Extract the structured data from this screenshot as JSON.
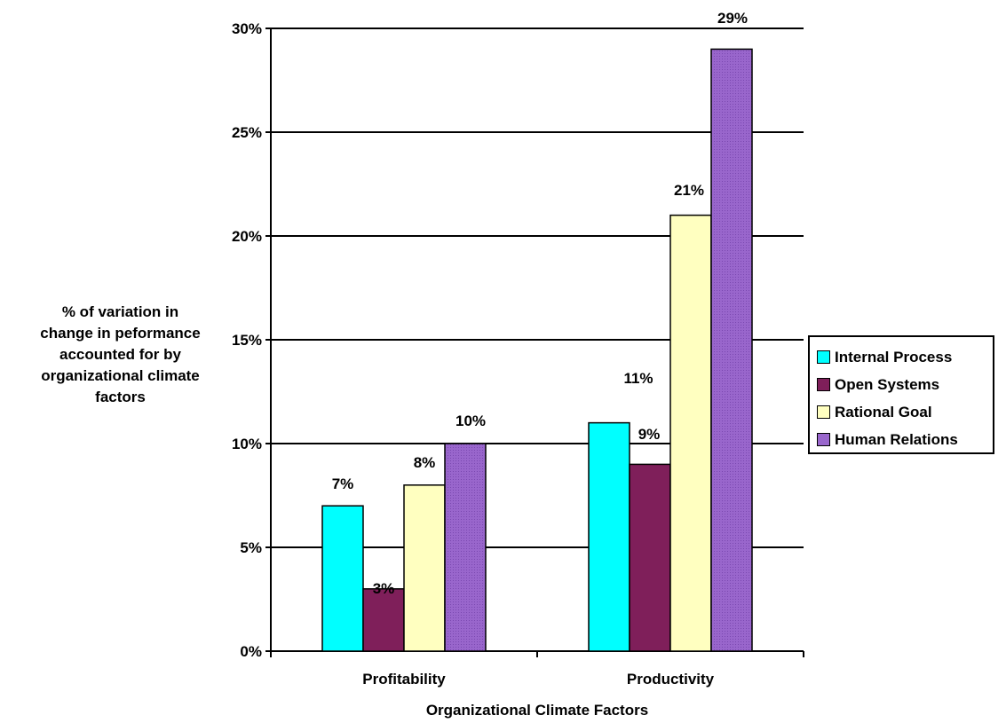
{
  "chart_data": {
    "type": "bar",
    "title": "",
    "xlabel": "Organizational Climate Factors",
    "ylabel": "% of variation in change in peformance accounted for by organizational climate factors",
    "ylabel_lines": [
      "% of variation in",
      "change in peformance",
      "accounted for by",
      "organizational climate",
      "factors"
    ],
    "categories": [
      "Profitability",
      "Productivity"
    ],
    "series": [
      {
        "name": "Internal Process",
        "values": [
          7,
          11
        ],
        "labels": [
          "7%",
          "11%"
        ],
        "color": "#00FFFF"
      },
      {
        "name": "Open Systems",
        "values": [
          3,
          9
        ],
        "labels": [
          "3%",
          "9%"
        ],
        "color": "#7F1F5A"
      },
      {
        "name": "Rational Goal",
        "values": [
          8,
          21
        ],
        "labels": [
          "8%",
          "21%"
        ],
        "color": "#FFFFC0"
      },
      {
        "name": "Human Relations",
        "values": [
          10,
          29
        ],
        "labels": [
          "10%",
          "29%"
        ],
        "color": "#9966CC"
      }
    ],
    "ylim": [
      0,
      30
    ],
    "yticks": [
      0,
      5,
      10,
      15,
      20,
      25,
      30
    ],
    "ytick_labels": [
      "0%",
      "5%",
      "10%",
      "15%",
      "20%",
      "25%",
      "30%"
    ],
    "grid": true,
    "legend_position": "right"
  }
}
